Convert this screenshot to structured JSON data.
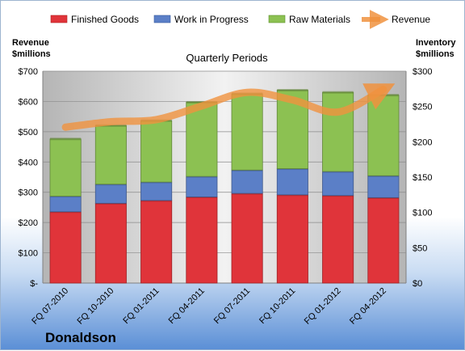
{
  "chart_data": {
    "type": "bar",
    "title": "Quarterly Periods",
    "company": "Donaldson",
    "left_axis": {
      "title_lines": [
        "Revenue",
        "$millions"
      ],
      "ticks": [
        "$-",
        "$100",
        "$200",
        "$300",
        "$400",
        "$500",
        "$600",
        "$700"
      ],
      "range": [
        0,
        700
      ]
    },
    "right_axis": {
      "title_lines": [
        "Inventory",
        "$millions"
      ],
      "ticks": [
        "$0",
        "$50",
        "$100",
        "$150",
        "$200",
        "$250",
        "$300"
      ],
      "range": [
        0,
        300
      ]
    },
    "categories": [
      "FQ 07-2010",
      "FQ 10-2010",
      "FQ 01-2011",
      "FQ 04-2011",
      "FQ 07-2011",
      "FQ 10-2011",
      "FQ 01-2012",
      "FQ 04-2012"
    ],
    "series": [
      {
        "name": "Finished Goods",
        "axis": "right",
        "color": "#e0343a",
        "values": [
          101,
          113,
          117,
          122,
          127,
          125,
          124,
          121
        ]
      },
      {
        "name": "Work in Progress",
        "axis": "right",
        "color": "#5b7fc7",
        "values": [
          22,
          27,
          26,
          29,
          33,
          37,
          34,
          31
        ]
      },
      {
        "name": "Raw Materials",
        "axis": "right",
        "color": "#8cc152",
        "values": [
          81,
          83,
          87,
          105,
          108,
          111,
          112,
          114
        ]
      },
      {
        "name": "Revenue",
        "axis": "left",
        "type": "line",
        "color": "#f0923e",
        "values": [
          515,
          533,
          540,
          585,
          630,
          605,
          565,
          640
        ]
      }
    ],
    "grid": true,
    "legend_position": "top"
  }
}
